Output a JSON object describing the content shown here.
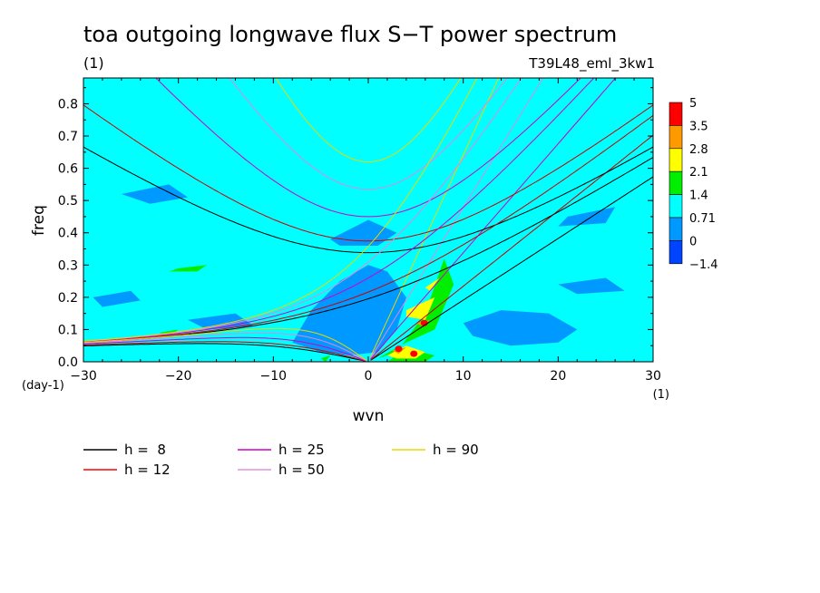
{
  "chart_data": {
    "type": "heatmap",
    "title": "toa outgoing longwave flux S−T power spectrum",
    "subtitle_left": "(1)",
    "subtitle_right": "T39L48_eml_3kw1",
    "xlabel": "wvn",
    "ylabel": "freq",
    "x_unit_label": "(1)",
    "y_unit_label": "(day-1)",
    "xlim": [
      -30,
      30
    ],
    "ylim": [
      0,
      0.88
    ],
    "xticks": [
      -30,
      -20,
      -10,
      0,
      10,
      20,
      30
    ],
    "yticks": [
      0.0,
      0.1,
      0.2,
      0.3,
      0.4,
      0.5,
      0.6,
      0.7,
      0.8
    ],
    "xtick_labels": [
      "−30",
      "−20",
      "−10",
      "0",
      "10",
      "20",
      "30"
    ],
    "ytick_labels": [
      "0.0",
      "0.1",
      "0.2",
      "0.3",
      "0.4",
      "0.5",
      "0.6",
      "0.7",
      "0.8"
    ],
    "colorbar": {
      "labels": [
        "5",
        "3.5",
        "2.8",
        "2.1",
        "1.4",
        "0.71",
        "0",
        "−1.4"
      ],
      "colors": [
        "#ff0000",
        "#ff9900",
        "#ffff00",
        "#00ee00",
        "#00ffff",
        "#0099ff",
        "#0044ff"
      ]
    },
    "background_level_color": "#00ffff",
    "regions": [
      {
        "level": "0",
        "color": "#0099ff",
        "x": [
          -8,
          -6,
          -3,
          0,
          2,
          4,
          3,
          1,
          -2,
          -5,
          -7,
          -9
        ],
        "y": [
          0.06,
          0.16,
          0.25,
          0.3,
          0.28,
          0.2,
          0.1,
          0.03,
          0.02,
          0.03,
          0.05,
          0.07
        ]
      },
      {
        "level": "0",
        "color": "#0099ff",
        "x": [
          10,
          14,
          19,
          22,
          20,
          15,
          11
        ],
        "y": [
          0.12,
          0.16,
          0.15,
          0.1,
          0.06,
          0.05,
          0.08
        ]
      },
      {
        "level": "0",
        "color": "#0099ff",
        "x": [
          -4,
          0,
          3,
          1,
          -3
        ],
        "y": [
          0.38,
          0.44,
          0.4,
          0.36,
          0.36
        ]
      },
      {
        "level": "0",
        "color": "#0099ff",
        "x": [
          -26,
          -21,
          -19,
          -23
        ],
        "y": [
          0.52,
          0.55,
          0.51,
          0.49
        ]
      },
      {
        "level": "0",
        "color": "#0099ff",
        "x": [
          -29,
          -25,
          -24,
          -28
        ],
        "y": [
          0.2,
          0.22,
          0.19,
          0.17
        ]
      },
      {
        "level": "0",
        "color": "#0099ff",
        "x": [
          -19,
          -14,
          -12,
          -17
        ],
        "y": [
          0.13,
          0.15,
          0.11,
          0.1
        ]
      },
      {
        "level": "0",
        "color": "#0099ff",
        "x": [
          20,
          25,
          27,
          22
        ],
        "y": [
          0.24,
          0.26,
          0.22,
          0.21
        ]
      },
      {
        "level": "0",
        "color": "#0099ff",
        "x": [
          21,
          26,
          25,
          20
        ],
        "y": [
          0.45,
          0.48,
          0.43,
          0.42
        ]
      },
      {
        "level": "1.4",
        "color": "#00ee00",
        "x": [
          1,
          4,
          7,
          9,
          8,
          6,
          3
        ],
        "y": [
          0.01,
          0.06,
          0.1,
          0.24,
          0.32,
          0.15,
          0.03
        ]
      },
      {
        "level": "1.4",
        "color": "#00ee00",
        "x": [
          2,
          4,
          7,
          6,
          3
        ],
        "y": [
          0.0,
          0.04,
          0.02,
          0.0,
          0.0
        ]
      },
      {
        "level": "1.4",
        "color": "#00ee00",
        "x": [
          -20,
          -17,
          -18,
          -21
        ],
        "y": [
          0.29,
          0.3,
          0.28,
          0.28
        ]
      },
      {
        "level": "1.4",
        "color": "#00ee00",
        "x": [
          -22,
          -20,
          -21
        ],
        "y": [
          0.09,
          0.1,
          0.08
        ]
      },
      {
        "level": "1.4",
        "color": "#00ee00",
        "x": [
          -5,
          -4,
          -4.5
        ],
        "y": [
          0.01,
          0.02,
          0.0
        ]
      },
      {
        "level": "2.1",
        "color": "#ffff00",
        "x": [
          4,
          7,
          6,
          4
        ],
        "y": [
          0.16,
          0.2,
          0.13,
          0.14
        ]
      },
      {
        "level": "2.1",
        "color": "#ffff00",
        "x": [
          6,
          7.5,
          6.5
        ],
        "y": [
          0.23,
          0.26,
          0.22
        ]
      },
      {
        "level": "2.1",
        "color": "#ffff00",
        "x": [
          2,
          4,
          6,
          5,
          3
        ],
        "y": [
          0.02,
          0.05,
          0.03,
          0.01,
          0.01
        ]
      },
      {
        "level": "3.5",
        "color": "#ff9900",
        "x": [
          5,
          6.5,
          5.8
        ],
        "y": [
          0.12,
          0.13,
          0.11
        ]
      },
      {
        "level": "3.5",
        "color": "#ff9900",
        "x": [
          2.5,
          4,
          3.2
        ],
        "y": [
          0.035,
          0.045,
          0.025
        ]
      },
      {
        "level": "5",
        "color": "#ff0000",
        "x": [
          3.2
        ],
        "y": [
          0.04
        ]
      },
      {
        "level": "5",
        "color": "#ff0000",
        "x": [
          4.8
        ],
        "y": [
          0.025
        ]
      },
      {
        "level": "5",
        "color": "#ff0000",
        "x": [
          5.9
        ],
        "y": [
          0.12
        ]
      }
    ],
    "curves": {
      "equivalent_depths": [
        8,
        12,
        25,
        50,
        90
      ],
      "colors": {
        "8": "#000000",
        "12": "#cc0000",
        "25": "#cc00cc",
        "50": "#dd88dd",
        "90": "#e8d800"
      },
      "families": [
        "kelvin",
        "inertia_gravity_n1",
        "inertia_gravity_n0",
        "rossby_n1"
      ]
    },
    "legend": [
      {
        "label": "h =  8",
        "color": "#000000"
      },
      {
        "label": "h = 12",
        "color": "#ff0000"
      },
      {
        "label": "h = 25",
        "color": "#cc00cc"
      },
      {
        "label": "h = 50",
        "color": "#e090e0"
      },
      {
        "label": "h = 90",
        "color": "#e8d800"
      }
    ]
  }
}
